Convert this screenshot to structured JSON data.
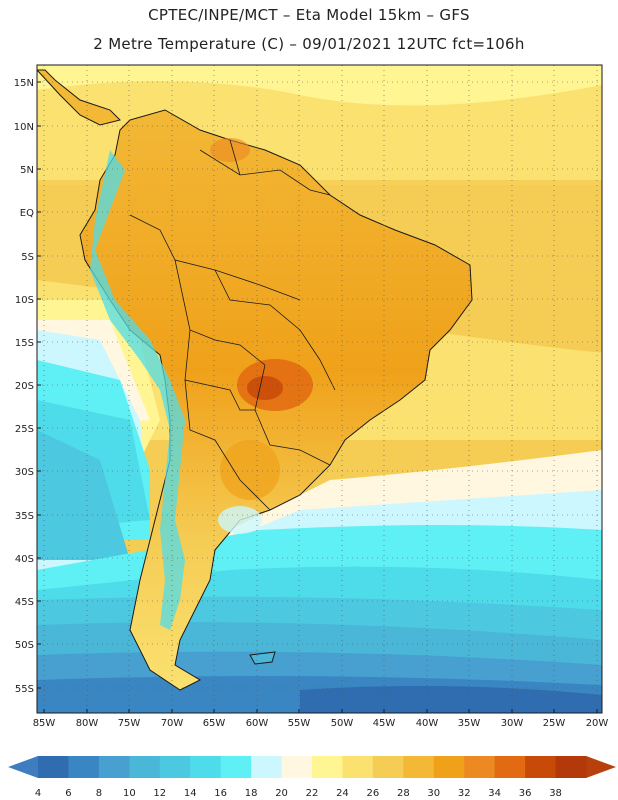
{
  "header": {
    "line1": "CPTEC/INPE/MCT –  Eta Model 15km – GFS",
    "line2": "2 Metre Temperature (C) – 09/01/2021 12UTC fct=106h"
  },
  "map": {
    "variable": "2 Metre Temperature",
    "units": "C",
    "lat_labels": [
      "15N",
      "10N",
      "5N",
      "EQ",
      "5S",
      "10S",
      "15S",
      "20S",
      "25S",
      "30S",
      "35S",
      "40S",
      "45S",
      "50S",
      "55S"
    ],
    "lon_labels": [
      "85W",
      "80W",
      "75W",
      "70W",
      "65W",
      "60W",
      "55W",
      "50W",
      "45W",
      "40W",
      "35W",
      "30W",
      "25W",
      "20W"
    ]
  },
  "legend": {
    "values": [
      "4",
      "6",
      "8",
      "10",
      "12",
      "14",
      "16",
      "18",
      "20",
      "22",
      "24",
      "26",
      "28",
      "30",
      "32",
      "34",
      "36",
      "38"
    ],
    "colors": [
      "#2f6db0",
      "#3a86c2",
      "#47a0cf",
      "#4ab6d8",
      "#4cc8e0",
      "#4fdcea",
      "#5ff0f5",
      "#ccf7ff",
      "#fff7e0",
      "#fff592",
      "#fbe170",
      "#f5cd55",
      "#f2b836",
      "#f0a11a",
      "#ec8922",
      "#e26a12",
      "#c84a08",
      "#b3380a"
    ],
    "under_color": "#3e7ec0",
    "over_color": "#b8400c"
  }
}
